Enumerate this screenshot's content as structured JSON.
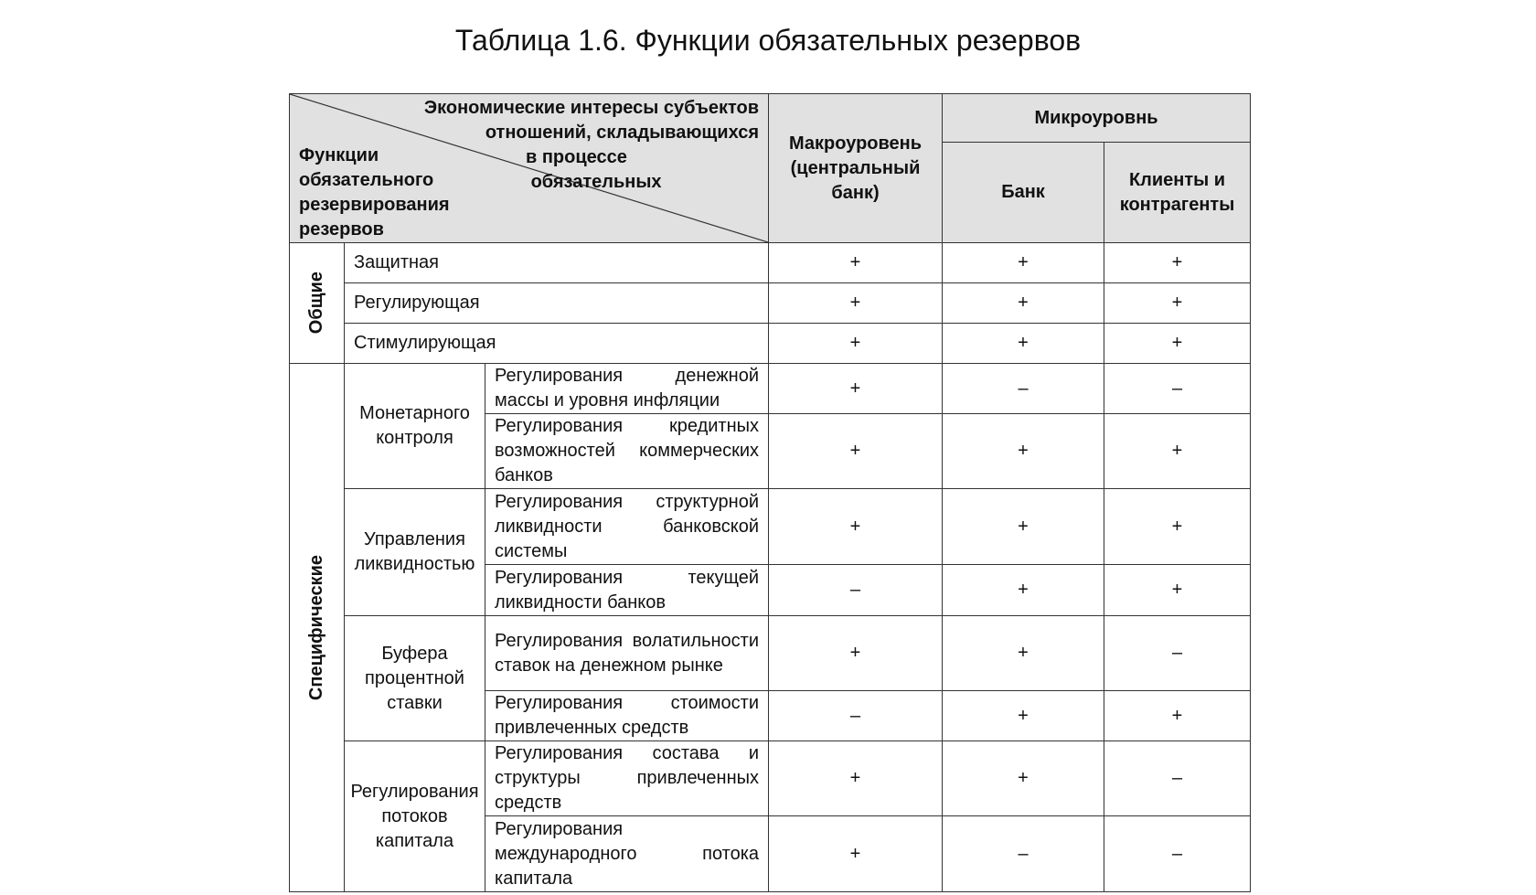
{
  "title": "Таблица 1.6. Функции обязательных резервов",
  "header": {
    "diag_top": "Экономические интересы субъектов отношений, складывающихся",
    "diag_top_line1": "Экономические интересы субъектов",
    "diag_top_line2": "отношений, складывающихся",
    "diag_top_line3": "в процессе",
    "diag_top_line4": "обязательных",
    "diag_bottom": "Функции обязательного резервирования резервов",
    "macro": "Макроуровень (центральный банк)",
    "micro": "Микроуровнь",
    "bank": "Банк",
    "clients": "Клиенты и контрагенты"
  },
  "groups": {
    "general": "Общие",
    "specific": "Специфические"
  },
  "general_rows": [
    {
      "name": "Защитная",
      "macro": "+",
      "bank": "+",
      "clients": "+"
    },
    {
      "name": "Регулирующая",
      "macro": "+",
      "bank": "+",
      "clients": "+"
    },
    {
      "name": "Стимулирующая",
      "macro": "+",
      "bank": "+",
      "clients": "+"
    }
  ],
  "specific": [
    {
      "category": "Монетарного контроля",
      "rows": [
        {
          "name": "Регулирования денежной массы и уровня инфляции",
          "macro": "+",
          "bank": "–",
          "clients": "–"
        },
        {
          "name": "Регулирования кредитных возможностей коммерческих банков",
          "macro": "+",
          "bank": "+",
          "clients": "+"
        }
      ]
    },
    {
      "category": "Управления ликвидностью",
      "rows": [
        {
          "name": "Регулирования структурной ликвидности банковской системы",
          "macro": "+",
          "bank": "+",
          "clients": "+"
        },
        {
          "name": "Регулирования текущей ликвидности банков",
          "macro": "–",
          "bank": "+",
          "clients": "+"
        }
      ]
    },
    {
      "category": "Буфера процентной ставки",
      "rows": [
        {
          "name": "Регулирования волатильности ставок на денежном рынке",
          "macro": "+",
          "bank": "+",
          "clients": "–"
        },
        {
          "name": "Регулирования стоимости привлеченных средств",
          "macro": "–",
          "bank": "+",
          "clients": "+"
        }
      ]
    },
    {
      "category": "Регулирования потоков капитала",
      "rows": [
        {
          "name": "Регулирования состава и структуры привлеченных средств",
          "macro": "+",
          "bank": "+",
          "clients": "–"
        },
        {
          "name": "Регулирования международного потока капитала",
          "macro": "+",
          "bank": "–",
          "clients": "–"
        }
      ]
    }
  ]
}
